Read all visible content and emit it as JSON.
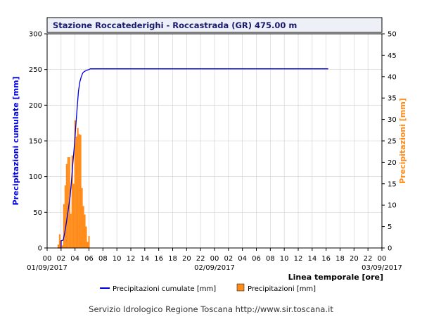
{
  "chart_data": {
    "type": "bar+line",
    "title": "Stazione Roccatederighi - Roccastrada (GR) 475.00 m",
    "ylabel_left": "Precipitazioni cumulate [mm]",
    "ylabel_right": "Precipitazioni [mm]",
    "xlabel": "Linea temporale [ore]",
    "ylim_left": [
      0,
      300
    ],
    "ylim_right": [
      0,
      50
    ],
    "yticks_left": [
      "0",
      "50",
      "100",
      "150",
      "200",
      "250",
      "300"
    ],
    "yticks_right": [
      "0",
      "5",
      "10",
      "15",
      "20",
      "25",
      "30",
      "35",
      "40",
      "45",
      "50"
    ],
    "xlim_hours": [
      0,
      48
    ],
    "xticks": [
      "00",
      "02",
      "04",
      "06",
      "08",
      "10",
      "12",
      "14",
      "16",
      "18",
      "20",
      "22",
      "00",
      "02",
      "04",
      "06",
      "08",
      "10",
      "12",
      "14",
      "16",
      "18",
      "20",
      "22",
      "00"
    ],
    "date_labels": [
      "01/09/2017",
      "02/09/2017",
      "03/09/2017"
    ],
    "grid": true,
    "legend_position": "bottom",
    "series": [
      {
        "name": "Precipitazioni cumulate [mm]",
        "type": "line",
        "axis": "left",
        "color": "#0000dd",
        "x": [
          1.5,
          2.0,
          2.0,
          2.3,
          2.5,
          2.7,
          2.9,
          3.1,
          3.3,
          3.5,
          3.7,
          3.9,
          4.1,
          4.3,
          4.5,
          4.7,
          4.9,
          5.1,
          5.3,
          5.5,
          5.7,
          6.0,
          6.2,
          10.0,
          20.0,
          30.0,
          40.0,
          40.3
        ],
        "y": [
          0,
          0,
          10,
          11,
          20,
          32,
          45,
          58,
          72,
          95,
          120,
          143,
          170,
          195,
          220,
          233,
          240,
          245,
          247,
          248,
          249,
          250,
          251,
          251,
          251,
          251,
          251,
          251
        ]
      },
      {
        "name": "Precipitazioni [mm]",
        "type": "bar",
        "axis": "right",
        "color": "#ff8c1a",
        "x": [
          1.6,
          1.8,
          2.0,
          2.2,
          2.4,
          2.6,
          2.8,
          3.0,
          3.2,
          3.4,
          3.6,
          3.8,
          4.0,
          4.2,
          4.4,
          4.6,
          4.8,
          5.0,
          5.2,
          5.4,
          5.6,
          5.8,
          6.0
        ],
        "y": [
          0.8,
          3.2,
          1.8,
          0.6,
          10.2,
          14.6,
          19.6,
          21.2,
          21.2,
          8.0,
          21.6,
          15.0,
          29.8,
          26.0,
          28.0,
          26.6,
          26.4,
          14.0,
          9.8,
          7.8,
          5.0,
          1.4,
          2.8
        ]
      }
    ]
  },
  "footer": "Servizio Idrologico Regione Toscana http://www.sir.toscana.it"
}
